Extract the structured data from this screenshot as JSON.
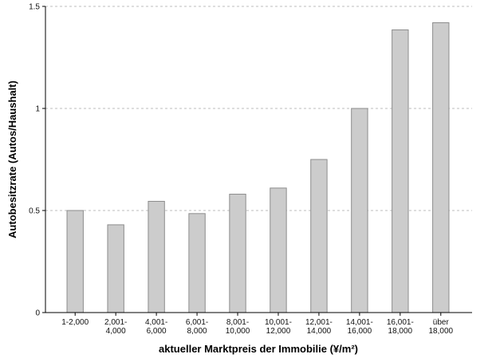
{
  "chart_data": {
    "type": "bar",
    "xlabel": "aktueller Marktpreis der Immobilie (¥/m²)",
    "ylabel": "Autobesitzrate (Autos/Haushalt)",
    "ylim": [
      0,
      1.5
    ],
    "yticks": [
      "0",
      "0.5",
      "1",
      "1.5"
    ],
    "grid": "horizontal dashed at 0.5, 1, 1.5",
    "categories": [
      [
        "1-2,000"
      ],
      [
        "2,001-",
        "4,000"
      ],
      [
        "4,001-",
        "6,000"
      ],
      [
        "6,001-",
        "8,000"
      ],
      [
        "8,001-",
        "10,000"
      ],
      [
        "10,001-",
        "12,000"
      ],
      [
        "12,001-",
        "14,000"
      ],
      [
        "14,001-",
        "16,000"
      ],
      [
        "16,001-",
        "18,000"
      ],
      [
        "über",
        "18,000"
      ]
    ],
    "values": [
      0.5,
      0.43,
      0.545,
      0.485,
      0.58,
      0.61,
      0.75,
      1.0,
      1.385,
      1.42
    ],
    "bar_color": "#cccccc",
    "bar_stroke": "#8c8c8c"
  }
}
